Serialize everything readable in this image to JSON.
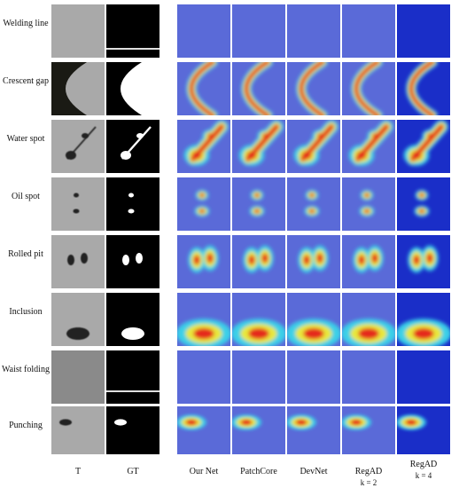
{
  "rows": [
    {
      "label": "Welding line"
    },
    {
      "label": "Crescent gap"
    },
    {
      "label": "Water spot"
    },
    {
      "label": "Oil spot"
    },
    {
      "label": "Rolled pit"
    },
    {
      "label": "Inclusion"
    },
    {
      "label": "Waist folding"
    },
    {
      "label": "Punching"
    }
  ],
  "columns": [
    {
      "label": "T"
    },
    {
      "label": "GT"
    },
    {
      "label": "Our Net"
    },
    {
      "label": "PatchCore"
    },
    {
      "label": "DevNet"
    },
    {
      "label": "RegAD",
      "sub": "k = 2"
    },
    {
      "label": "RegAD",
      "sub": "k = 4"
    }
  ]
}
